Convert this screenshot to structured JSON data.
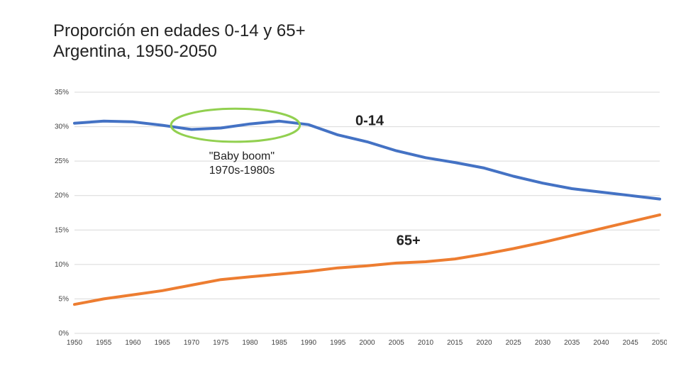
{
  "title_line1": "Proporción en edades 0-14 y 65+",
  "title_line2": "Argentina, 1950-2050",
  "chart": {
    "type": "line",
    "background_color": "#ffffff",
    "grid_color": "#d9d9d9",
    "axis_label_color": "#444444",
    "axis_label_fontsize": 10,
    "ylim": [
      0,
      0.35
    ],
    "ytick_step": 0.05,
    "yticks": [
      "0%",
      "5%",
      "10%",
      "15%",
      "20%",
      "25%",
      "30%",
      "35%"
    ],
    "xlim": [
      1950,
      2050
    ],
    "xtick_step": 5,
    "xticks": [
      "1950",
      "1955",
      "1960",
      "1965",
      "1970",
      "1975",
      "1980",
      "1985",
      "1990",
      "1995",
      "2000",
      "2005",
      "2010",
      "2015",
      "2020",
      "2025",
      "2030",
      "2035",
      "2040",
      "2045",
      "2050"
    ],
    "series": [
      {
        "id": "age_0_14",
        "label": "0-14",
        "color": "#4472c4",
        "line_width": 4,
        "x": [
          1950,
          1955,
          1960,
          1965,
          1970,
          1975,
          1980,
          1985,
          1990,
          1995,
          2000,
          2005,
          2010,
          2015,
          2020,
          2025,
          2030,
          2035,
          2040,
          2045,
          2050
        ],
        "y": [
          0.305,
          0.308,
          0.307,
          0.302,
          0.296,
          0.298,
          0.304,
          0.308,
          0.303,
          0.288,
          0.278,
          0.265,
          0.255,
          0.248,
          0.24,
          0.228,
          0.218,
          0.21,
          0.205,
          0.2,
          0.195
        ]
      },
      {
        "id": "age_65_plus",
        "label": "65+",
        "color": "#ed7d31",
        "line_width": 4,
        "x": [
          1950,
          1955,
          1960,
          1965,
          1970,
          1975,
          1980,
          1985,
          1990,
          1995,
          2000,
          2005,
          2010,
          2015,
          2020,
          2025,
          2030,
          2035,
          2040,
          2045,
          2050
        ],
        "y": [
          0.042,
          0.05,
          0.056,
          0.062,
          0.07,
          0.078,
          0.082,
          0.086,
          0.09,
          0.095,
          0.098,
          0.102,
          0.104,
          0.108,
          0.115,
          0.123,
          0.132,
          0.142,
          0.152,
          0.162,
          0.172
        ]
      }
    ],
    "annotations": {
      "baby_boom_line1": "\"Baby boom\"",
      "baby_boom_line2": "1970s-1980s",
      "ellipse": {
        "cx_year": 1977.5,
        "cy_value": 0.302,
        "rx_years": 11,
        "ry_value": 0.024,
        "stroke": "#92d050",
        "stroke_width": 3
      }
    },
    "title_fontsize": 24,
    "series_label_fontsize": 20,
    "annotation_fontsize": 16
  }
}
